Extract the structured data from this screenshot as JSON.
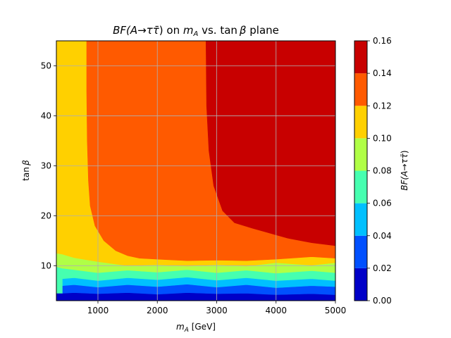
{
  "chart_data": {
    "type": "heatmap",
    "title_parts": [
      "BF(A",
      "→",
      "τ",
      "τ̄",
      ")",
      " on ",
      "m",
      "A",
      " vs. tan ",
      "β",
      " plane"
    ],
    "xlabel_parts": [
      "m",
      "A",
      " [GeV]"
    ],
    "ylabel_parts": [
      "tan ",
      "β"
    ],
    "colorbar_label_parts": [
      "BF(A",
      "→",
      "τ",
      "τ̄",
      ")"
    ],
    "xlim": [
      300,
      5000
    ],
    "ylim": [
      3,
      55
    ],
    "x_ticks": [
      {
        "value": 1000,
        "label": "1000"
      },
      {
        "value": 2000,
        "label": "2000"
      },
      {
        "value": 3000,
        "label": "3000"
      },
      {
        "value": 4000,
        "label": "4000"
      },
      {
        "value": 5000,
        "label": "5000"
      }
    ],
    "y_ticks": [
      {
        "value": 10,
        "label": "10"
      },
      {
        "value": 20,
        "label": "20"
      },
      {
        "value": 30,
        "label": "30"
      },
      {
        "value": 40,
        "label": "40"
      },
      {
        "value": 50,
        "label": "50"
      }
    ],
    "grid": true,
    "colorbar": {
      "levels": [
        0.0,
        0.02,
        0.04,
        0.06,
        0.08,
        0.1,
        0.12,
        0.14,
        0.16
      ],
      "tick_labels": [
        "0.00",
        "0.02",
        "0.04",
        "0.06",
        "0.08",
        "0.10",
        "0.12",
        "0.14",
        "0.16"
      ],
      "colors": [
        "#0000c8",
        "#0050ff",
        "#00c0ff",
        "#46ffb0",
        "#b0ff46",
        "#ffd000",
        "#ff5a00",
        "#c80000"
      ]
    },
    "regions": [
      {
        "range": [
          0.0,
          0.02
        ],
        "color": "#0000c8",
        "boundary": [
          [
            300,
            3
          ],
          [
            5000,
            3
          ],
          [
            5000,
            4.2
          ],
          [
            4600,
            4.4
          ],
          [
            4000,
            4.2
          ],
          [
            3500,
            4.5
          ],
          [
            3000,
            4.4
          ],
          [
            2500,
            4.6
          ],
          [
            2000,
            4.3
          ],
          [
            1500,
            4.6
          ],
          [
            1000,
            4.4
          ],
          [
            600,
            4.6
          ],
          [
            400,
            4.5
          ],
          [
            300,
            4.5
          ]
        ]
      },
      {
        "range": [
          0.02,
          0.04
        ],
        "color": "#0050ff",
        "boundary": [
          [
            400,
            4.5
          ],
          [
            600,
            4.6
          ],
          [
            1000,
            4.4
          ],
          [
            1500,
            4.6
          ],
          [
            2000,
            4.3
          ],
          [
            2500,
            4.6
          ],
          [
            3000,
            4.4
          ],
          [
            3500,
            4.5
          ],
          [
            4000,
            4.2
          ],
          [
            4600,
            4.4
          ],
          [
            5000,
            4.2
          ],
          [
            5000,
            5.8
          ],
          [
            4600,
            6.0
          ],
          [
            4000,
            5.6
          ],
          [
            3500,
            6.2
          ],
          [
            3000,
            5.7
          ],
          [
            2500,
            6.3
          ],
          [
            2000,
            5.8
          ],
          [
            1500,
            6.2
          ],
          [
            1000,
            5.7
          ],
          [
            600,
            6.2
          ],
          [
            400,
            6.0
          ]
        ]
      },
      {
        "range": [
          0.04,
          0.06
        ],
        "color": "#00c0ff",
        "boundary": [
          [
            400,
            6.0
          ],
          [
            600,
            6.2
          ],
          [
            1000,
            5.7
          ],
          [
            1500,
            6.2
          ],
          [
            2000,
            5.8
          ],
          [
            2500,
            6.3
          ],
          [
            3000,
            5.7
          ],
          [
            3500,
            6.2
          ],
          [
            4000,
            5.6
          ],
          [
            4600,
            6.0
          ],
          [
            5000,
            5.8
          ],
          [
            5000,
            7.0
          ],
          [
            4600,
            7.4
          ],
          [
            4000,
            7.0
          ],
          [
            3500,
            7.6
          ],
          [
            3000,
            7.1
          ],
          [
            2500,
            7.7
          ],
          [
            2000,
            7.2
          ],
          [
            1500,
            7.6
          ],
          [
            1000,
            7.0
          ],
          [
            600,
            7.6
          ],
          [
            400,
            7.4
          ]
        ]
      },
      {
        "range": [
          0.06,
          0.08
        ],
        "color": "#46ffb0",
        "boundary": [
          [
            300,
            4.5
          ],
          [
            400,
            4.5
          ],
          [
            400,
            7.4
          ],
          [
            600,
            7.6
          ],
          [
            1000,
            7.0
          ],
          [
            1500,
            7.6
          ],
          [
            2000,
            7.2
          ],
          [
            2500,
            7.7
          ],
          [
            3000,
            7.1
          ],
          [
            3500,
            7.6
          ],
          [
            4000,
            7.0
          ],
          [
            4600,
            7.4
          ],
          [
            5000,
            7.0
          ],
          [
            5000,
            8.6
          ],
          [
            4600,
            9.0
          ],
          [
            4000,
            8.5
          ],
          [
            3500,
            9.1
          ],
          [
            3000,
            8.6
          ],
          [
            2500,
            9.2
          ],
          [
            2000,
            8.7
          ],
          [
            1500,
            9.1
          ],
          [
            1000,
            8.6
          ],
          [
            600,
            9.2
          ],
          [
            400,
            9.5
          ],
          [
            300,
            9.8
          ]
        ]
      },
      {
        "range": [
          0.08,
          0.1
        ],
        "color": "#b0ff46",
        "boundary": [
          [
            300,
            9.8
          ],
          [
            400,
            9.5
          ],
          [
            600,
            9.2
          ],
          [
            1000,
            8.6
          ],
          [
            1500,
            9.1
          ],
          [
            2000,
            8.7
          ],
          [
            2500,
            9.2
          ],
          [
            3000,
            8.6
          ],
          [
            3500,
            9.1
          ],
          [
            4000,
            8.5
          ],
          [
            4600,
            9.0
          ],
          [
            5000,
            8.6
          ],
          [
            5000,
            10.6
          ],
          [
            4600,
            10.1
          ],
          [
            4000,
            10.6
          ],
          [
            3500,
            9.9
          ],
          [
            3000,
            10.2
          ],
          [
            2500,
            9.9
          ],
          [
            2000,
            10.2
          ],
          [
            1500,
            10.0
          ],
          [
            1000,
            10.8
          ],
          [
            600,
            11.6
          ],
          [
            400,
            12.3
          ],
          [
            300,
            12.5
          ]
        ]
      },
      {
        "range": [
          0.1,
          0.12
        ],
        "color": "#ffd000",
        "boundary": [
          [
            300,
            12.5
          ],
          [
            400,
            12.3
          ],
          [
            600,
            11.6
          ],
          [
            1000,
            10.8
          ],
          [
            1500,
            10.0
          ],
          [
            2000,
            10.2
          ],
          [
            2500,
            9.9
          ],
          [
            3000,
            10.2
          ],
          [
            3500,
            9.9
          ],
          [
            4000,
            10.6
          ],
          [
            4600,
            10.1
          ],
          [
            5000,
            10.6
          ],
          [
            5000,
            11.5
          ],
          [
            4600,
            11.8
          ],
          [
            4000,
            11.3
          ],
          [
            3500,
            11.0
          ],
          [
            3000,
            11.1
          ],
          [
            2500,
            11.0
          ],
          [
            2000,
            11.3
          ],
          [
            1700,
            11.5
          ],
          [
            1500,
            12.0
          ],
          [
            1300,
            13.0
          ],
          [
            1100,
            15.0
          ],
          [
            950,
            18.0
          ],
          [
            870,
            22.0
          ],
          [
            840,
            27.0
          ],
          [
            820,
            35.0
          ],
          [
            810,
            45.0
          ],
          [
            810,
            55.0
          ],
          [
            300,
            55.0
          ]
        ]
      },
      {
        "range": [
          0.12,
          0.14
        ],
        "color": "#ff5a00",
        "boundary": [
          [
            810,
            55.0
          ],
          [
            810,
            45.0
          ],
          [
            820,
            35.0
          ],
          [
            840,
            27.0
          ],
          [
            870,
            22.0
          ],
          [
            950,
            18.0
          ],
          [
            1100,
            15.0
          ],
          [
            1300,
            13.0
          ],
          [
            1500,
            12.0
          ],
          [
            1700,
            11.5
          ],
          [
            2000,
            11.3
          ],
          [
            2500,
            11.0
          ],
          [
            3000,
            11.1
          ],
          [
            3500,
            11.0
          ],
          [
            4000,
            11.3
          ],
          [
            4600,
            11.8
          ],
          [
            5000,
            11.5
          ],
          [
            5000,
            14.0
          ],
          [
            4600,
            14.6
          ],
          [
            4200,
            15.5
          ],
          [
            3900,
            16.5
          ],
          [
            3600,
            17.5
          ],
          [
            3300,
            18.6
          ],
          [
            3100,
            21.0
          ],
          [
            2950,
            26.0
          ],
          [
            2870,
            33.0
          ],
          [
            2830,
            42.0
          ],
          [
            2820,
            55.0
          ]
        ]
      },
      {
        "range": [
          0.14,
          0.16
        ],
        "color": "#c80000",
        "boundary": [
          [
            2820,
            55.0
          ],
          [
            2830,
            42.0
          ],
          [
            2870,
            33.0
          ],
          [
            2950,
            26.0
          ],
          [
            3100,
            21.0
          ],
          [
            3300,
            18.6
          ],
          [
            3600,
            17.5
          ],
          [
            3900,
            16.5
          ],
          [
            4200,
            15.5
          ],
          [
            4600,
            14.6
          ],
          [
            5000,
            14.0
          ],
          [
            5000,
            55.0
          ]
        ]
      }
    ]
  }
}
